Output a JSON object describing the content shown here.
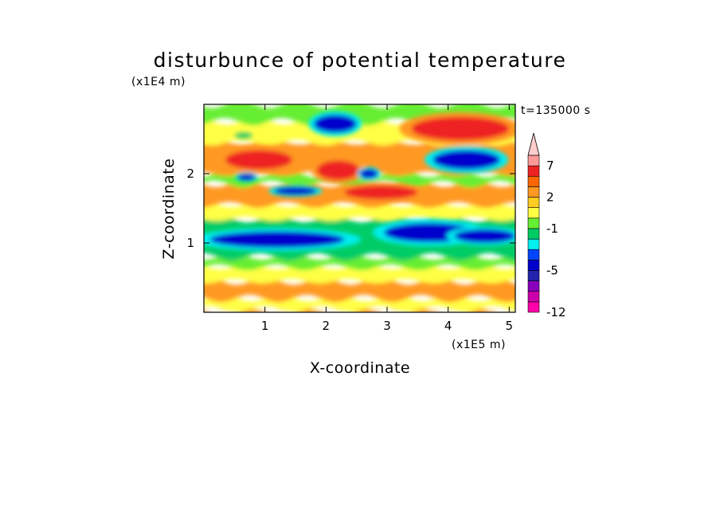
{
  "chart_data": {
    "type": "heatmap",
    "title": "disturbunce of potential temperature",
    "xlabel": "X-coordinate",
    "ylabel": "Z-coordinate",
    "x_unit": "(x1E5 m)",
    "y_unit": "(x1E4 m)",
    "time_label": "t=135000 s",
    "xlim": [
      0,
      5.1
    ],
    "ylim": [
      0,
      3.0
    ],
    "x_ticks": [
      "1",
      "2",
      "3",
      "4",
      "5"
    ],
    "x_tick_values": [
      1,
      2,
      3,
      4,
      5
    ],
    "y_ticks": [
      "1",
      "2"
    ],
    "y_tick_values": [
      1,
      2
    ],
    "colorbar": {
      "levels": [
        -12,
        -11,
        -9,
        -7,
        -5,
        -4,
        -3,
        -2,
        -1,
        0,
        1,
        2,
        3,
        5,
        7,
        9,
        11
      ],
      "labels": [
        "-12",
        "-5",
        "-1",
        "2",
        "7"
      ],
      "label_values": [
        -12,
        -5,
        -1,
        2,
        7
      ],
      "colors": [
        "#ff00aa",
        "#cc00aa",
        "#8800bb",
        "#2222aa",
        "#0000cc",
        "#0044ff",
        "#00eeee",
        "#00cc66",
        "#66ee33",
        "#ffff44",
        "#ffcc22",
        "#ff9922",
        "#ff6600",
        "#ee2222",
        "#ff9999",
        "#ffcccc"
      ],
      "extend": "max"
    },
    "bands": [
      {
        "z_low": 0.0,
        "z_high": 0.05,
        "value": 2
      },
      {
        "z_low": 0.05,
        "z_high": 0.2,
        "value": 0.5
      },
      {
        "z_low": 0.2,
        "z_high": 0.45,
        "value": 2
      },
      {
        "z_low": 0.45,
        "z_high": 0.65,
        "value": 0.5
      },
      {
        "z_low": 0.65,
        "z_high": 0.8,
        "value": -0.5
      },
      {
        "z_low": 0.8,
        "z_high": 1.35,
        "value": -1.5
      },
      {
        "z_low": 1.35,
        "z_high": 1.55,
        "value": 0.5
      },
      {
        "z_low": 1.55,
        "z_high": 1.85,
        "value": 2
      },
      {
        "z_low": 1.85,
        "z_high": 2.0,
        "value": -0.5
      },
      {
        "z_low": 2.0,
        "z_high": 2.45,
        "value": 2
      },
      {
        "z_low": 2.45,
        "z_high": 2.75,
        "value": 0.5
      },
      {
        "z_low": 2.75,
        "z_high": 3.0,
        "value": -0.5
      }
    ],
    "blobs": [
      {
        "x": 1.2,
        "z": 1.05,
        "rx": 1.1,
        "rz": 0.12,
        "value": -5
      },
      {
        "x": 3.7,
        "z": 1.15,
        "rx": 0.75,
        "rz": 0.14,
        "value": -5
      },
      {
        "x": 4.6,
        "z": 1.1,
        "rx": 0.5,
        "rz": 0.1,
        "value": -5
      },
      {
        "x": 0.9,
        "z": 2.2,
        "rx": 0.55,
        "rz": 0.14,
        "value": 5
      },
      {
        "x": 4.2,
        "z": 2.65,
        "rx": 0.8,
        "rz": 0.17,
        "value": 5
      },
      {
        "x": 2.9,
        "z": 1.73,
        "rx": 0.6,
        "rz": 0.1,
        "value": 5
      },
      {
        "x": 2.2,
        "z": 2.05,
        "rx": 0.35,
        "rz": 0.14,
        "value": 5
      },
      {
        "x": 2.15,
        "z": 2.72,
        "rx": 0.35,
        "rz": 0.13,
        "value": -5
      },
      {
        "x": 4.3,
        "z": 2.2,
        "rx": 0.55,
        "rz": 0.14,
        "value": -5
      },
      {
        "x": 1.5,
        "z": 1.75,
        "rx": 0.35,
        "rz": 0.06,
        "value": -5
      },
      {
        "x": 2.7,
        "z": 2.0,
        "rx": 0.15,
        "rz": 0.07,
        "value": -5
      },
      {
        "x": 0.65,
        "z": 2.55,
        "rx": 0.15,
        "rz": 0.05,
        "value": -1.5
      },
      {
        "x": 0.7,
        "z": 1.95,
        "rx": 0.15,
        "rz": 0.05,
        "value": -5
      }
    ]
  }
}
